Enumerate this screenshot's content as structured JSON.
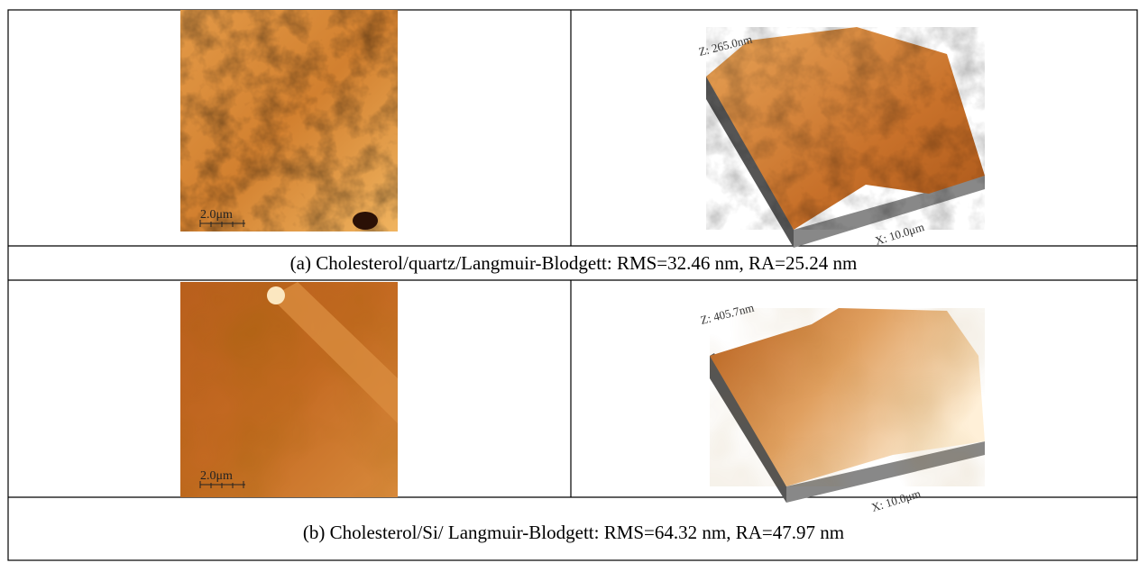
{
  "table": {
    "rows": [
      {
        "images": [
          {
            "scale_bar": "2.0μm"
          },
          {
            "z_label": "Z: 265.0nm",
            "x_label": "X: 10.0μm"
          }
        ],
        "caption": "(a) Cholesterol/quartz/Langmuir-Blodgett: RMS=32.46 nm, RA=25.24 nm"
      },
      {
        "images": [
          {
            "scale_bar": "2.0μm"
          },
          {
            "z_label": "Z: 405.7nm",
            "x_label": "X: 10.0μm"
          }
        ],
        "caption": "(b) Cholesterol/Si/ Langmuir-Blodgett: RMS=64.32 nm, RA=47.97 nm"
      }
    ]
  }
}
